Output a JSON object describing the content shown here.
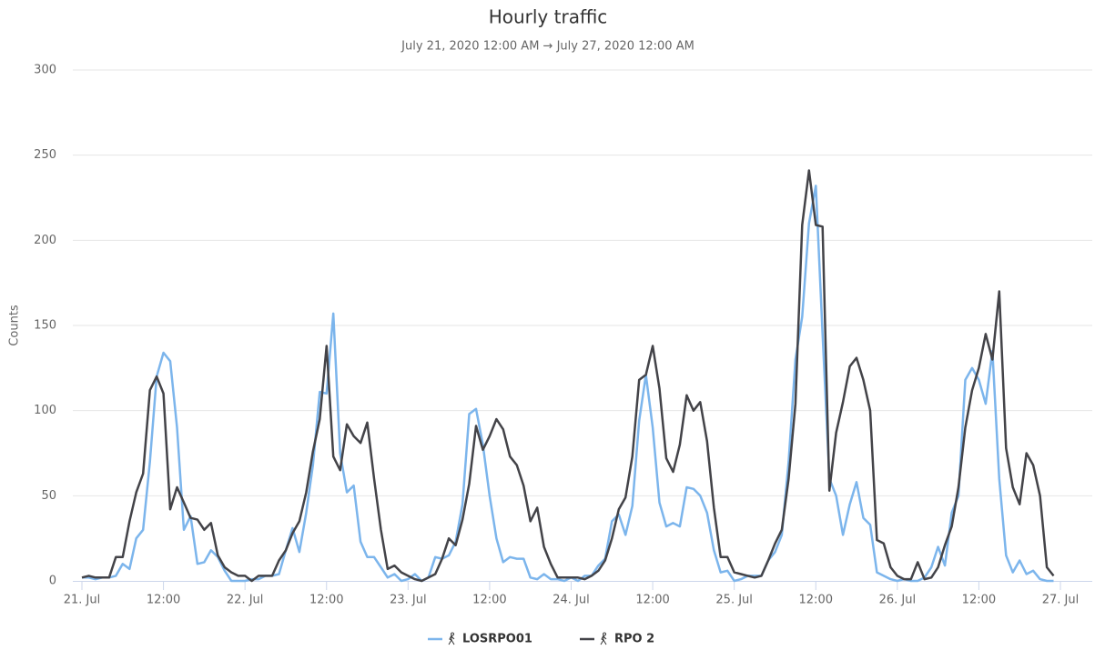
{
  "chart_data": {
    "type": "line",
    "title": "Hourly traffic",
    "subtitle": "July 21, 2020 12:00 AM → July 27, 2020 12:00 AM",
    "y_label": "Counts",
    "x": [
      0,
      1,
      2,
      3,
      4,
      5,
      6,
      7,
      8,
      9,
      10,
      11,
      12,
      13,
      14,
      15,
      16,
      17,
      18,
      19,
      20,
      21,
      22,
      23,
      24,
      25,
      26,
      27,
      28,
      29,
      30,
      31,
      32,
      33,
      34,
      35,
      36,
      37,
      38,
      39,
      40,
      41,
      42,
      43,
      44,
      45,
      46,
      47,
      48,
      49,
      50,
      51,
      52,
      53,
      54,
      55,
      56,
      57,
      58,
      59,
      60,
      61,
      62,
      63,
      64,
      65,
      66,
      67,
      68,
      69,
      70,
      71,
      72,
      73,
      74,
      75,
      76,
      77,
      78,
      79,
      80,
      81,
      82,
      83,
      84,
      85,
      86,
      87,
      88,
      89,
      90,
      91,
      92,
      93,
      94,
      95,
      96,
      97,
      98,
      99,
      100,
      101,
      102,
      103,
      104,
      105,
      106,
      107,
      108,
      109,
      110,
      111,
      112,
      113,
      114,
      115,
      116,
      117,
      118,
      119,
      120,
      121,
      122,
      123,
      124,
      125,
      126,
      127,
      128,
      129,
      130,
      131,
      132,
      133,
      134,
      135,
      136,
      137,
      138,
      139,
      140,
      141,
      142,
      143
    ],
    "series": [
      {
        "name": "LOSRPO01",
        "color": "#7cb5ec",
        "values": [
          2,
          2,
          1,
          2,
          2,
          3,
          10,
          7,
          25,
          30,
          70,
          120,
          134,
          129,
          90,
          30,
          38,
          10,
          11,
          18,
          14,
          6,
          0,
          0,
          0,
          1,
          1,
          3,
          3,
          4,
          18,
          31,
          17,
          40,
          68,
          111,
          110,
          157,
          75,
          52,
          56,
          23,
          14,
          14,
          8,
          2,
          4,
          0,
          1,
          4,
          0,
          2,
          14,
          13,
          15,
          23,
          45,
          98,
          101,
          80,
          50,
          25,
          11,
          14,
          13,
          13,
          2,
          1,
          4,
          1,
          1,
          0,
          2,
          0,
          3,
          3,
          9,
          13,
          35,
          39,
          27,
          44,
          94,
          121,
          90,
          46,
          32,
          34,
          32,
          55,
          54,
          50,
          40,
          18,
          5,
          6,
          0,
          1,
          3,
          3,
          3,
          12,
          17,
          27,
          70,
          130,
          155,
          210,
          232,
          145,
          60,
          50,
          27,
          45,
          58,
          37,
          33,
          5,
          3,
          1,
          0,
          1,
          0,
          0,
          2,
          8,
          20,
          9,
          40,
          50,
          118,
          125,
          118,
          104,
          135,
          60,
          15,
          5,
          12,
          4,
          6,
          1,
          0,
          0
        ]
      },
      {
        "name": "RPO 2",
        "color": "#434348",
        "values": [
          2,
          3,
          2,
          2,
          2,
          14,
          14,
          35,
          52,
          63,
          112,
          120,
          110,
          42,
          55,
          46,
          37,
          36,
          30,
          34,
          15,
          8,
          5,
          3,
          3,
          0,
          3,
          3,
          3,
          12,
          18,
          28,
          35,
          52,
          76,
          95,
          138,
          73,
          65,
          92,
          85,
          81,
          93,
          60,
          30,
          7,
          9,
          5,
          3,
          1,
          0,
          2,
          4,
          13,
          25,
          21,
          36,
          57,
          91,
          77,
          85,
          95,
          89,
          73,
          68,
          56,
          35,
          43,
          20,
          10,
          2,
          2,
          2,
          2,
          1,
          3,
          6,
          12,
          25,
          42,
          49,
          73,
          118,
          121,
          138,
          113,
          72,
          64,
          80,
          109,
          100,
          105,
          82,
          43,
          14,
          14,
          5,
          4,
          3,
          2,
          3,
          12,
          22,
          30,
          60,
          104,
          209,
          241,
          209,
          208,
          53,
          87,
          105,
          126,
          131,
          118,
          100,
          24,
          22,
          8,
          3,
          1,
          1,
          11,
          1,
          2,
          8,
          21,
          32,
          55,
          90,
          112,
          125,
          145,
          130,
          170,
          78,
          55,
          45,
          75,
          68,
          50,
          8,
          3
        ]
      }
    ],
    "xlim": [
      0,
      144
    ],
    "xticks": [
      {
        "value": 0,
        "label": "21. Jul"
      },
      {
        "value": 12,
        "label": "12:00"
      },
      {
        "value": 24,
        "label": "22. Jul"
      },
      {
        "value": 36,
        "label": "12:00"
      },
      {
        "value": 48,
        "label": "23. Jul"
      },
      {
        "value": 60,
        "label": "12:00"
      },
      {
        "value": 72,
        "label": "24. Jul"
      },
      {
        "value": 84,
        "label": "12:00"
      },
      {
        "value": 96,
        "label": "25. Jul"
      },
      {
        "value": 108,
        "label": "12:00"
      },
      {
        "value": 120,
        "label": "26. Jul"
      },
      {
        "value": 132,
        "label": "12:00"
      },
      {
        "value": 144,
        "label": "27. Jul"
      }
    ],
    "ylim": [
      0,
      300
    ],
    "yticks": [
      0,
      50,
      100,
      150,
      200,
      250,
      300
    ],
    "grid": true
  }
}
